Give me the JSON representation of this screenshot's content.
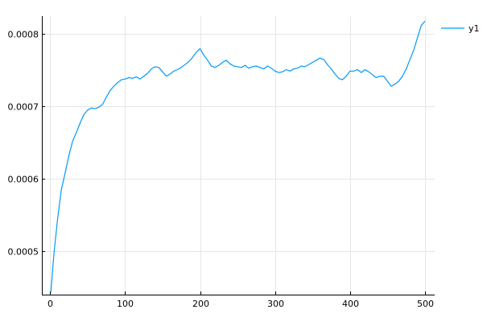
{
  "chart_data": {
    "type": "line",
    "title": "",
    "xlabel": "",
    "ylabel": "",
    "xlim": [
      -11,
      513
    ],
    "ylim": [
      0.00044,
      0.000825
    ],
    "x_ticks": [
      0,
      100,
      200,
      300,
      400,
      500
    ],
    "x_tick_labels": [
      "0",
      "100",
      "200",
      "300",
      "400",
      "500"
    ],
    "y_ticks": [
      0.0005,
      0.0006,
      0.0007,
      0.0008
    ],
    "y_tick_labels": [
      "0.0005",
      "0.0006",
      "0.0007",
      "0.0008"
    ],
    "grid": true,
    "legend": "top-right",
    "series": [
      {
        "name": "y1",
        "color": "#009af9",
        "x": [
          1,
          5,
          10,
          15,
          20,
          25,
          30,
          35,
          40,
          45,
          50,
          55,
          60,
          65,
          70,
          75,
          80,
          85,
          90,
          95,
          100,
          105,
          110,
          115,
          120,
          125,
          130,
          135,
          140,
          145,
          150,
          155,
          160,
          165,
          170,
          175,
          180,
          185,
          190,
          195,
          200,
          205,
          210,
          215,
          220,
          225,
          230,
          235,
          240,
          245,
          250,
          255,
          260,
          265,
          270,
          275,
          280,
          285,
          290,
          295,
          300,
          305,
          310,
          315,
          320,
          325,
          330,
          335,
          340,
          345,
          350,
          355,
          360,
          365,
          370,
          375,
          380,
          385,
          390,
          395,
          400,
          405,
          410,
          415,
          420,
          425,
          430,
          435,
          440,
          445,
          450,
          455,
          460,
          465,
          470,
          475,
          480,
          485,
          490,
          495,
          500
        ],
        "y": [
          0.000443,
          0.000495,
          0.000545,
          0.000585,
          0.000608,
          0.000632,
          0.000652,
          0.000664,
          0.000677,
          0.000689,
          0.000695,
          0.000698,
          0.000697,
          0.000699,
          0.000703,
          0.000713,
          0.000722,
          0.000728,
          0.000733,
          0.000737,
          0.000738,
          0.00074,
          0.000739,
          0.000741,
          0.000738,
          0.000742,
          0.000746,
          0.000752,
          0.000755,
          0.000754,
          0.000748,
          0.000742,
          0.000745,
          0.000749,
          0.000751,
          0.000754,
          0.000758,
          0.000762,
          0.000768,
          0.000775,
          0.00078,
          0.000771,
          0.000764,
          0.000756,
          0.000754,
          0.000757,
          0.000761,
          0.000764,
          0.000759,
          0.000756,
          0.000755,
          0.000754,
          0.000757,
          0.000753,
          0.000755,
          0.000756,
          0.000754,
          0.000752,
          0.000756,
          0.000753,
          0.000749,
          0.000747,
          0.000748,
          0.000751,
          0.000749,
          0.000752,
          0.000753,
          0.000756,
          0.000755,
          0.000758,
          0.000761,
          0.000764,
          0.000767,
          0.000765,
          0.000758,
          0.000752,
          0.000745,
          0.000739,
          0.000737,
          0.000742,
          0.000749,
          0.000749,
          0.000751,
          0.000747,
          0.000751,
          0.000748,
          0.000744,
          0.00074,
          0.000742,
          0.000742,
          0.000735,
          0.000728,
          0.000731,
          0.000735,
          0.000742,
          0.000752,
          0.000765,
          0.000778,
          0.000795,
          0.000812,
          0.000818
        ]
      }
    ]
  }
}
